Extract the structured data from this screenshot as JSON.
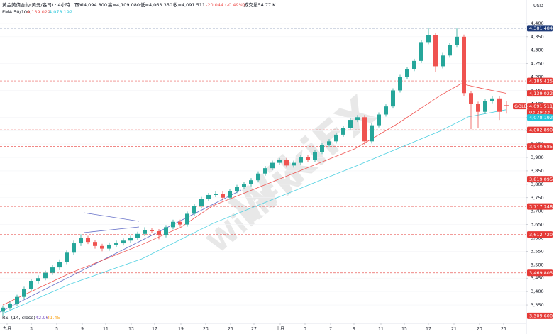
{
  "chart_data": {
    "type": "candlestick",
    "header": {
      "symbol": "黃金美債合約(美元/盎司) · 4小時 · TVC",
      "open": "開=4,094.800",
      "high": "高=4,109.080",
      "low": "低=4,063.350",
      "close": "收=4,091.511",
      "change": "-20.044 (-0.49%)",
      "volume": "成交量54.77 K",
      "ema_title": "EMA 50/100",
      "ema50_text": "4,139.022",
      "ema100_text": "4,078.192"
    },
    "currency": "USD",
    "watermark": "WikiFX",
    "rsi": {
      "title": "RSI (14, close)",
      "v1": "42.96",
      "v2": "41.45"
    },
    "up_color": "#26a69a",
    "down_color": "#ef5350",
    "candles": [
      [
        3325,
        3348,
        3310,
        3340
      ],
      [
        3340,
        3362,
        3332,
        3355
      ],
      [
        3355,
        3388,
        3347,
        3380
      ],
      [
        3380,
        3418,
        3372,
        3410
      ],
      [
        3410,
        3448,
        3402,
        3440
      ],
      [
        3440,
        3460,
        3430,
        3450
      ],
      [
        3450,
        3478,
        3442,
        3470
      ],
      [
        3470,
        3498,
        3462,
        3490
      ],
      [
        3490,
        3520,
        3480,
        3510
      ],
      [
        3510,
        3553,
        3502,
        3545
      ],
      [
        3545,
        3590,
        3537,
        3580
      ],
      [
        3580,
        3614,
        3570,
        3600
      ],
      [
        3600,
        3608,
        3577,
        3585
      ],
      [
        3585,
        3593,
        3560,
        3570
      ],
      [
        3570,
        3578,
        3550,
        3560
      ],
      [
        3560,
        3583,
        3552,
        3575
      ],
      [
        3575,
        3590,
        3567,
        3580
      ],
      [
        3580,
        3598,
        3572,
        3590
      ],
      [
        3590,
        3608,
        3582,
        3600
      ],
      [
        3600,
        3623,
        3592,
        3615
      ],
      [
        3615,
        3640,
        3607,
        3630
      ],
      [
        3630,
        3638,
        3617,
        3625
      ],
      [
        3625,
        3633,
        3595,
        3610
      ],
      [
        3610,
        3648,
        3602,
        3640
      ],
      [
        3640,
        3668,
        3632,
        3660
      ],
      [
        3660,
        3668,
        3642,
        3650
      ],
      [
        3650,
        3698,
        3642,
        3690
      ],
      [
        3690,
        3728,
        3682,
        3720
      ],
      [
        3720,
        3753,
        3712,
        3745
      ],
      [
        3745,
        3768,
        3737,
        3760
      ],
      [
        3760,
        3775,
        3752,
        3765
      ],
      [
        3765,
        3773,
        3740,
        3750
      ],
      [
        3750,
        3783,
        3742,
        3775
      ],
      [
        3775,
        3798,
        3767,
        3790
      ],
      [
        3790,
        3808,
        3782,
        3800
      ],
      [
        3800,
        3823,
        3792,
        3815
      ],
      [
        3815,
        3848,
        3807,
        3840
      ],
      [
        3840,
        3868,
        3832,
        3860
      ],
      [
        3860,
        3888,
        3852,
        3880
      ],
      [
        3880,
        3898,
        3872,
        3890
      ],
      [
        3890,
        3898,
        3862,
        3870
      ],
      [
        3870,
        3888,
        3862,
        3880
      ],
      [
        3880,
        3908,
        3872,
        3900
      ],
      [
        3900,
        3908,
        3882,
        3890
      ],
      [
        3890,
        3928,
        3882,
        3920
      ],
      [
        3920,
        3953,
        3912,
        3945
      ],
      [
        3945,
        3968,
        3937,
        3960
      ],
      [
        3960,
        3993,
        3952,
        3985
      ],
      [
        3985,
        4018,
        3977,
        4010
      ],
      [
        4010,
        4048,
        4002,
        4040
      ],
      [
        4040,
        4058,
        4032,
        4050
      ],
      [
        4050,
        4058,
        3945,
        3960
      ],
      [
        3960,
        4028,
        3952,
        4020
      ],
      [
        4020,
        4068,
        4012,
        4060
      ],
      [
        4060,
        4098,
        4052,
        4090
      ],
      [
        4090,
        4158,
        4082,
        4150
      ],
      [
        4150,
        4208,
        4142,
        4200
      ],
      [
        4200,
        4238,
        4192,
        4230
      ],
      [
        4230,
        4268,
        4222,
        4260
      ],
      [
        4260,
        4338,
        4252,
        4330
      ],
      [
        4330,
        4381,
        4322,
        4355
      ],
      [
        4355,
        4363,
        4220,
        4240
      ],
      [
        4240,
        4290,
        4232,
        4280
      ],
      [
        4280,
        4328,
        4272,
        4320
      ],
      [
        4320,
        4381,
        4312,
        4350
      ],
      [
        4350,
        4358,
        4130,
        4140
      ],
      [
        4140,
        4148,
        4005,
        4100
      ],
      [
        4100,
        4108,
        4010,
        4070
      ],
      [
        4070,
        4118,
        4062,
        4110
      ],
      [
        4110,
        4128,
        4102,
        4120
      ],
      [
        4120,
        4128,
        4040,
        4070
      ],
      [
        4094.8,
        4109.08,
        4063.35,
        4091.511
      ]
    ],
    "series": [
      {
        "name": "EMA 50",
        "color": "#ef5350",
        "x": [
          0,
          9.6,
          19.6,
          25.1,
          29.6,
          39.6,
          49.6,
          55.6,
          61.6,
          64.6,
          67.6,
          71
        ],
        "values": [
          3350,
          3470,
          3575,
          3640,
          3720,
          3826,
          3932,
          4025,
          4130,
          4175,
          4157,
          4139
        ]
      },
      {
        "name": "EMA 100",
        "color": "#4dd0e1",
        "x": [
          0,
          9.6,
          19.6,
          29.6,
          39.6,
          49.6,
          55.6,
          61.6,
          65.6,
          71
        ],
        "values": [
          3318,
          3429,
          3522,
          3654,
          3760,
          3866,
          3932,
          3998,
          4051,
          4078
        ]
      }
    ],
    "levels": [
      {
        "value": 4381.484,
        "label": "4,381.484",
        "color": "#1e3a78"
      },
      {
        "value": 4185.425,
        "label": "4,185.425",
        "color": "#e53935"
      },
      {
        "value": 4002.89,
        "label": "4,002.890",
        "color": "#e53935"
      },
      {
        "value": 3940.685,
        "label": "3,940.685",
        "color": "#e53935"
      },
      {
        "value": 3819.095,
        "label": "3,819.095",
        "color": "#e53935"
      },
      {
        "value": 3717.348,
        "label": "3,717.348",
        "color": "#e53935"
      },
      {
        "value": 3612.72,
        "label": "3,612.720",
        "color": "#e53935"
      },
      {
        "value": 3469.805,
        "label": "3,469.805",
        "color": "#e53935"
      },
      {
        "value": 3309.6,
        "label": "3,309.600",
        "color": "#e53935"
      }
    ],
    "tags": [
      {
        "value": 4139.022,
        "label": "4,139.022",
        "color": "#e53935"
      },
      {
        "value": 4091.511,
        "label": "4,091.511",
        "color": "#e53935",
        "name": "GOLD",
        "sub": "03:29:33"
      },
      {
        "value": 4078.192,
        "label": "4,078.192",
        "color": "#26c6da"
      }
    ],
    "xlim": [
      -0.4,
      73.8
    ],
    "ylim": [
      3284,
      4450
    ],
    "xticks": [
      {
        "value": 0.6,
        "label": "九月"
      },
      {
        "value": 4,
        "label": "3"
      },
      {
        "value": 7.6,
        "label": "5"
      },
      {
        "value": 11.2,
        "label": "9"
      },
      {
        "value": 14.5,
        "label": "11"
      },
      {
        "value": 18.1,
        "label": "13"
      },
      {
        "value": 21.4,
        "label": "17"
      },
      {
        "value": 25.1,
        "label": "19"
      },
      {
        "value": 28.6,
        "label": "23"
      },
      {
        "value": 32.1,
        "label": "25"
      },
      {
        "value": 35.4,
        "label": "27"
      },
      {
        "value": 39.1,
        "label": "十月"
      },
      {
        "value": 42.6,
        "label": "3"
      },
      {
        "value": 46.2,
        "label": "7"
      },
      {
        "value": 49.5,
        "label": "9"
      },
      {
        "value": 53.3,
        "label": "11"
      },
      {
        "value": 56.6,
        "label": "15"
      },
      {
        "value": 60,
        "label": "17"
      },
      {
        "value": 63.6,
        "label": "21"
      },
      {
        "value": 67.2,
        "label": "23"
      },
      {
        "value": 70.6,
        "label": "25"
      }
    ],
    "yticks": [
      {
        "value": 3350,
        "label": "3,350"
      },
      {
        "value": 3400,
        "label": "3,400"
      },
      {
        "value": 3450,
        "label": "3,450"
      },
      {
        "value": 3500,
        "label": "3,500"
      },
      {
        "value": 3550,
        "label": "3,550"
      },
      {
        "value": 3600,
        "label": "3,600"
      },
      {
        "value": 3650,
        "label": "3,650"
      },
      {
        "value": 3700,
        "label": "3,700"
      },
      {
        "value": 3750,
        "label": "3,750"
      },
      {
        "value": 3800,
        "label": "3,800"
      },
      {
        "value": 3850,
        "label": "3,850"
      },
      {
        "value": 3900,
        "label": "3,900"
      },
      {
        "value": 3950,
        "label": "3,950"
      },
      {
        "value": 4000,
        "label": "4,000"
      },
      {
        "value": 4050,
        "label": "4,050"
      },
      {
        "value": 4100,
        "label": "4,100"
      },
      {
        "value": 4150,
        "label": "4,150"
      },
      {
        "value": 4200,
        "label": "4,200"
      },
      {
        "value": 4250,
        "label": "4,250"
      },
      {
        "value": 4300,
        "label": "4,300"
      },
      {
        "value": 4350,
        "label": "4,350"
      },
      {
        "value": 4400,
        "label": "4,400"
      }
    ]
  }
}
